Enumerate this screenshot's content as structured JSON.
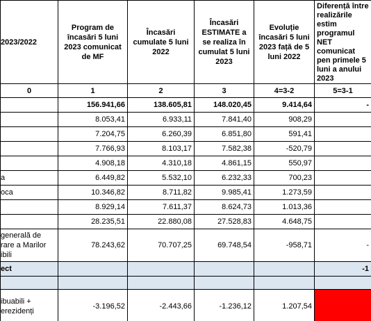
{
  "table": {
    "headers": [
      "2023/2022",
      "Program de încasări 5 luni 2023 comunicat de MF",
      "Încasări cumulate 5 luni 2022",
      "Încasări ESTIMATE a se realiza în cumulat 5 luni 2023",
      "Evoluție încasări 5 luni 2023 față de 5 luni 2022",
      "Diferență între realizările estim programul NET comunicat pen primele 5 luni a anului 2023"
    ],
    "index_row": [
      "0",
      "1",
      "2",
      "3",
      "4=3-2",
      "5=3-1"
    ],
    "rows": [
      [
        null,
        "156.941,66",
        "138.605,81",
        "148.020,45",
        "9.414,64",
        "-"
      ],
      [
        null,
        "8.053,41",
        "6.933,11",
        "7.841,40",
        "908,29",
        null
      ],
      [
        null,
        "7.204,75",
        "6.260,39",
        "6.851,80",
        "591,41",
        null
      ],
      [
        null,
        "7.766,93",
        "8.103,17",
        "7.582,38",
        "-520,79",
        null
      ],
      [
        null,
        "4.908,18",
        "4.310,18",
        "4.861,15",
        "550,97",
        null
      ],
      [
        "a",
        "6.449,82",
        "5.532,10",
        "6.232,33",
        "700,23",
        null
      ],
      [
        "oca",
        "10.346,82",
        "8.711,82",
        "9.985,41",
        "1.273,59",
        null
      ],
      [
        null,
        "8.929,14",
        "7.611,37",
        "8.624,73",
        "1.013,36",
        null
      ],
      [
        null,
        "28.235,51",
        "22.880,08",
        "27.528,83",
        "4.648,75",
        null
      ],
      [
        "generală de rare a Marilor ibili",
        "78.243,62",
        "70.707,25",
        "69.748,54",
        "-958,71",
        "-"
      ],
      [
        "ect",
        null,
        null,
        null,
        null,
        "-1"
      ],
      [
        null,
        null,
        null,
        null,
        null,
        null
      ],
      [
        "ibuabili + erezidenți",
        "-3.196,52",
        "-2.443,66",
        "-1.236,12",
        "1.207,54",
        null
      ]
    ]
  }
}
